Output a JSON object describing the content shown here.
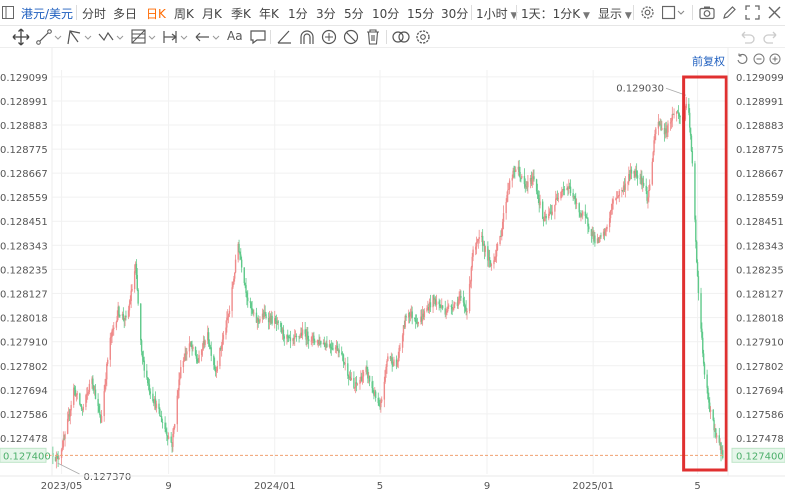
{
  "toolbar": {
    "symbol": "港元/美元",
    "periods": [
      "分时",
      "多日",
      "日K",
      "周K",
      "月K",
      "季K",
      "年K",
      "1分",
      "3分",
      "5分",
      "10分",
      "15分",
      "30分"
    ],
    "active_period": "日K",
    "interval_dropdown": "1小时",
    "sync_dropdown": "1天：1分K",
    "display_dropdown": "显示"
  },
  "drawing_tools": {
    "text_tool_label": "Aa"
  },
  "adjust": {
    "label": "前复权"
  },
  "colors": {
    "up": "#ef8a8a",
    "down": "#5fc98a",
    "current_price": "#4caf6a",
    "highlight_box": "#e03030",
    "active_tab": "#ff6a00",
    "link": "#1f5fbf"
  },
  "chart_data": {
    "type": "candlestick",
    "title": "",
    "y_ticks": [
      "0.129099",
      "0.128991",
      "0.128883",
      "0.128775",
      "0.128667",
      "0.128559",
      "0.128451",
      "0.128343",
      "0.128235",
      "0.128127",
      "0.128018",
      "0.127910",
      "0.127802",
      "0.127694",
      "0.127586",
      "0.127478"
    ],
    "ylim": [
      0.12737,
      0.12913
    ],
    "x_ticks": [
      "2023/05",
      "9",
      "2024/01",
      "5",
      "9",
      "2025/01",
      "5"
    ],
    "x_tick_dates": [
      "2023-05-01",
      "2023-09-01",
      "2024-01-01",
      "2024-05-01",
      "2024-09-01",
      "2025-01-01",
      "2025-05-01"
    ],
    "xlim": [
      "2023-04-20",
      "2025-06-05"
    ],
    "annotations": {
      "max": {
        "label": "0.129030",
        "value": 0.12903,
        "date": "2025-04-20"
      },
      "min": {
        "label": "0.127370",
        "value": 0.12737,
        "date": "2023-04-24"
      }
    },
    "current_price": {
      "label": "0.127400",
      "value": 0.1274
    },
    "highlight": {
      "from": "2025-04-15",
      "to": "2025-06-03",
      "y_from": 0.12737,
      "y_to": 0.12913
    },
    "series": [
      {
        "anchors": [
          [
            "2023-04-21",
            0.12741
          ],
          [
            "2023-04-26",
            0.12738
          ],
          [
            "2023-05-05",
            0.12748
          ],
          [
            "2023-05-15",
            0.1277
          ],
          [
            "2023-05-25",
            0.1276
          ],
          [
            "2023-06-05",
            0.12775
          ],
          [
            "2023-06-15",
            0.12755
          ],
          [
            "2023-06-25",
            0.1279
          ],
          [
            "2023-07-05",
            0.12805
          ],
          [
            "2023-07-15",
            0.128
          ],
          [
            "2023-07-25",
            0.12825
          ],
          [
            "2023-08-01",
            0.12785
          ],
          [
            "2023-08-10",
            0.1277
          ],
          [
            "2023-08-20",
            0.1276
          ],
          [
            "2023-08-30",
            0.1275
          ],
          [
            "2023-09-05",
            0.12745
          ],
          [
            "2023-09-15",
            0.1278
          ],
          [
            "2023-09-25",
            0.1279
          ],
          [
            "2023-10-05",
            0.12782
          ],
          [
            "2023-10-15",
            0.12795
          ],
          [
            "2023-10-25",
            0.12778
          ],
          [
            "2023-11-01",
            0.1279
          ],
          [
            "2023-11-10",
            0.12805
          ],
          [
            "2023-11-20",
            0.12835
          ],
          [
            "2023-12-01",
            0.1281
          ],
          [
            "2023-12-10",
            0.128
          ],
          [
            "2023-12-20",
            0.12803
          ],
          [
            "2024-01-01",
            0.128
          ],
          [
            "2024-01-10",
            0.12795
          ],
          [
            "2024-01-20",
            0.1279
          ],
          [
            "2024-02-01",
            0.12795
          ],
          [
            "2024-02-15",
            0.12792
          ],
          [
            "2024-03-01",
            0.1279
          ],
          [
            "2024-03-15",
            0.12788
          ],
          [
            "2024-04-01",
            0.1277
          ],
          [
            "2024-04-15",
            0.12778
          ],
          [
            "2024-05-01",
            0.1276
          ],
          [
            "2024-05-10",
            0.12785
          ],
          [
            "2024-05-20",
            0.1278
          ],
          [
            "2024-06-01",
            0.12805
          ],
          [
            "2024-06-15",
            0.128
          ],
          [
            "2024-07-01",
            0.1281
          ],
          [
            "2024-07-15",
            0.12805
          ],
          [
            "2024-08-01",
            0.1281
          ],
          [
            "2024-08-10",
            0.12805
          ],
          [
            "2024-08-15",
            0.1283
          ],
          [
            "2024-08-25",
            0.12838
          ],
          [
            "2024-09-05",
            0.12825
          ],
          [
            "2024-09-15",
            0.12835
          ],
          [
            "2024-09-25",
            0.1286
          ],
          [
            "2024-10-05",
            0.1287
          ],
          [
            "2024-10-15",
            0.1286
          ],
          [
            "2024-10-25",
            0.12865
          ],
          [
            "2024-11-05",
            0.12845
          ],
          [
            "2024-11-15",
            0.1285
          ],
          [
            "2024-11-25",
            0.1286
          ],
          [
            "2024-12-05",
            0.1286
          ],
          [
            "2024-12-15",
            0.1285
          ],
          [
            "2024-12-25",
            0.12845
          ],
          [
            "2025-01-05",
            0.12835
          ],
          [
            "2025-01-15",
            0.1284
          ],
          [
            "2025-01-25",
            0.12855
          ],
          [
            "2025-02-05",
            0.1286
          ],
          [
            "2025-02-15",
            0.12868
          ],
          [
            "2025-02-25",
            0.12865
          ],
          [
            "2025-03-05",
            0.12855
          ],
          [
            "2025-03-15",
            0.1289
          ],
          [
            "2025-03-25",
            0.12885
          ],
          [
            "2025-04-05",
            0.12895
          ],
          [
            "2025-04-15",
            0.1289
          ],
          [
            "2025-04-20",
            0.129
          ],
          [
            "2025-04-25",
            0.1287
          ],
          [
            "2025-05-01",
            0.1282
          ],
          [
            "2025-05-08",
            0.1278
          ],
          [
            "2025-05-15",
            0.1276
          ],
          [
            "2025-05-22",
            0.1275
          ],
          [
            "2025-05-30",
            0.1274
          ]
        ]
      }
    ]
  }
}
